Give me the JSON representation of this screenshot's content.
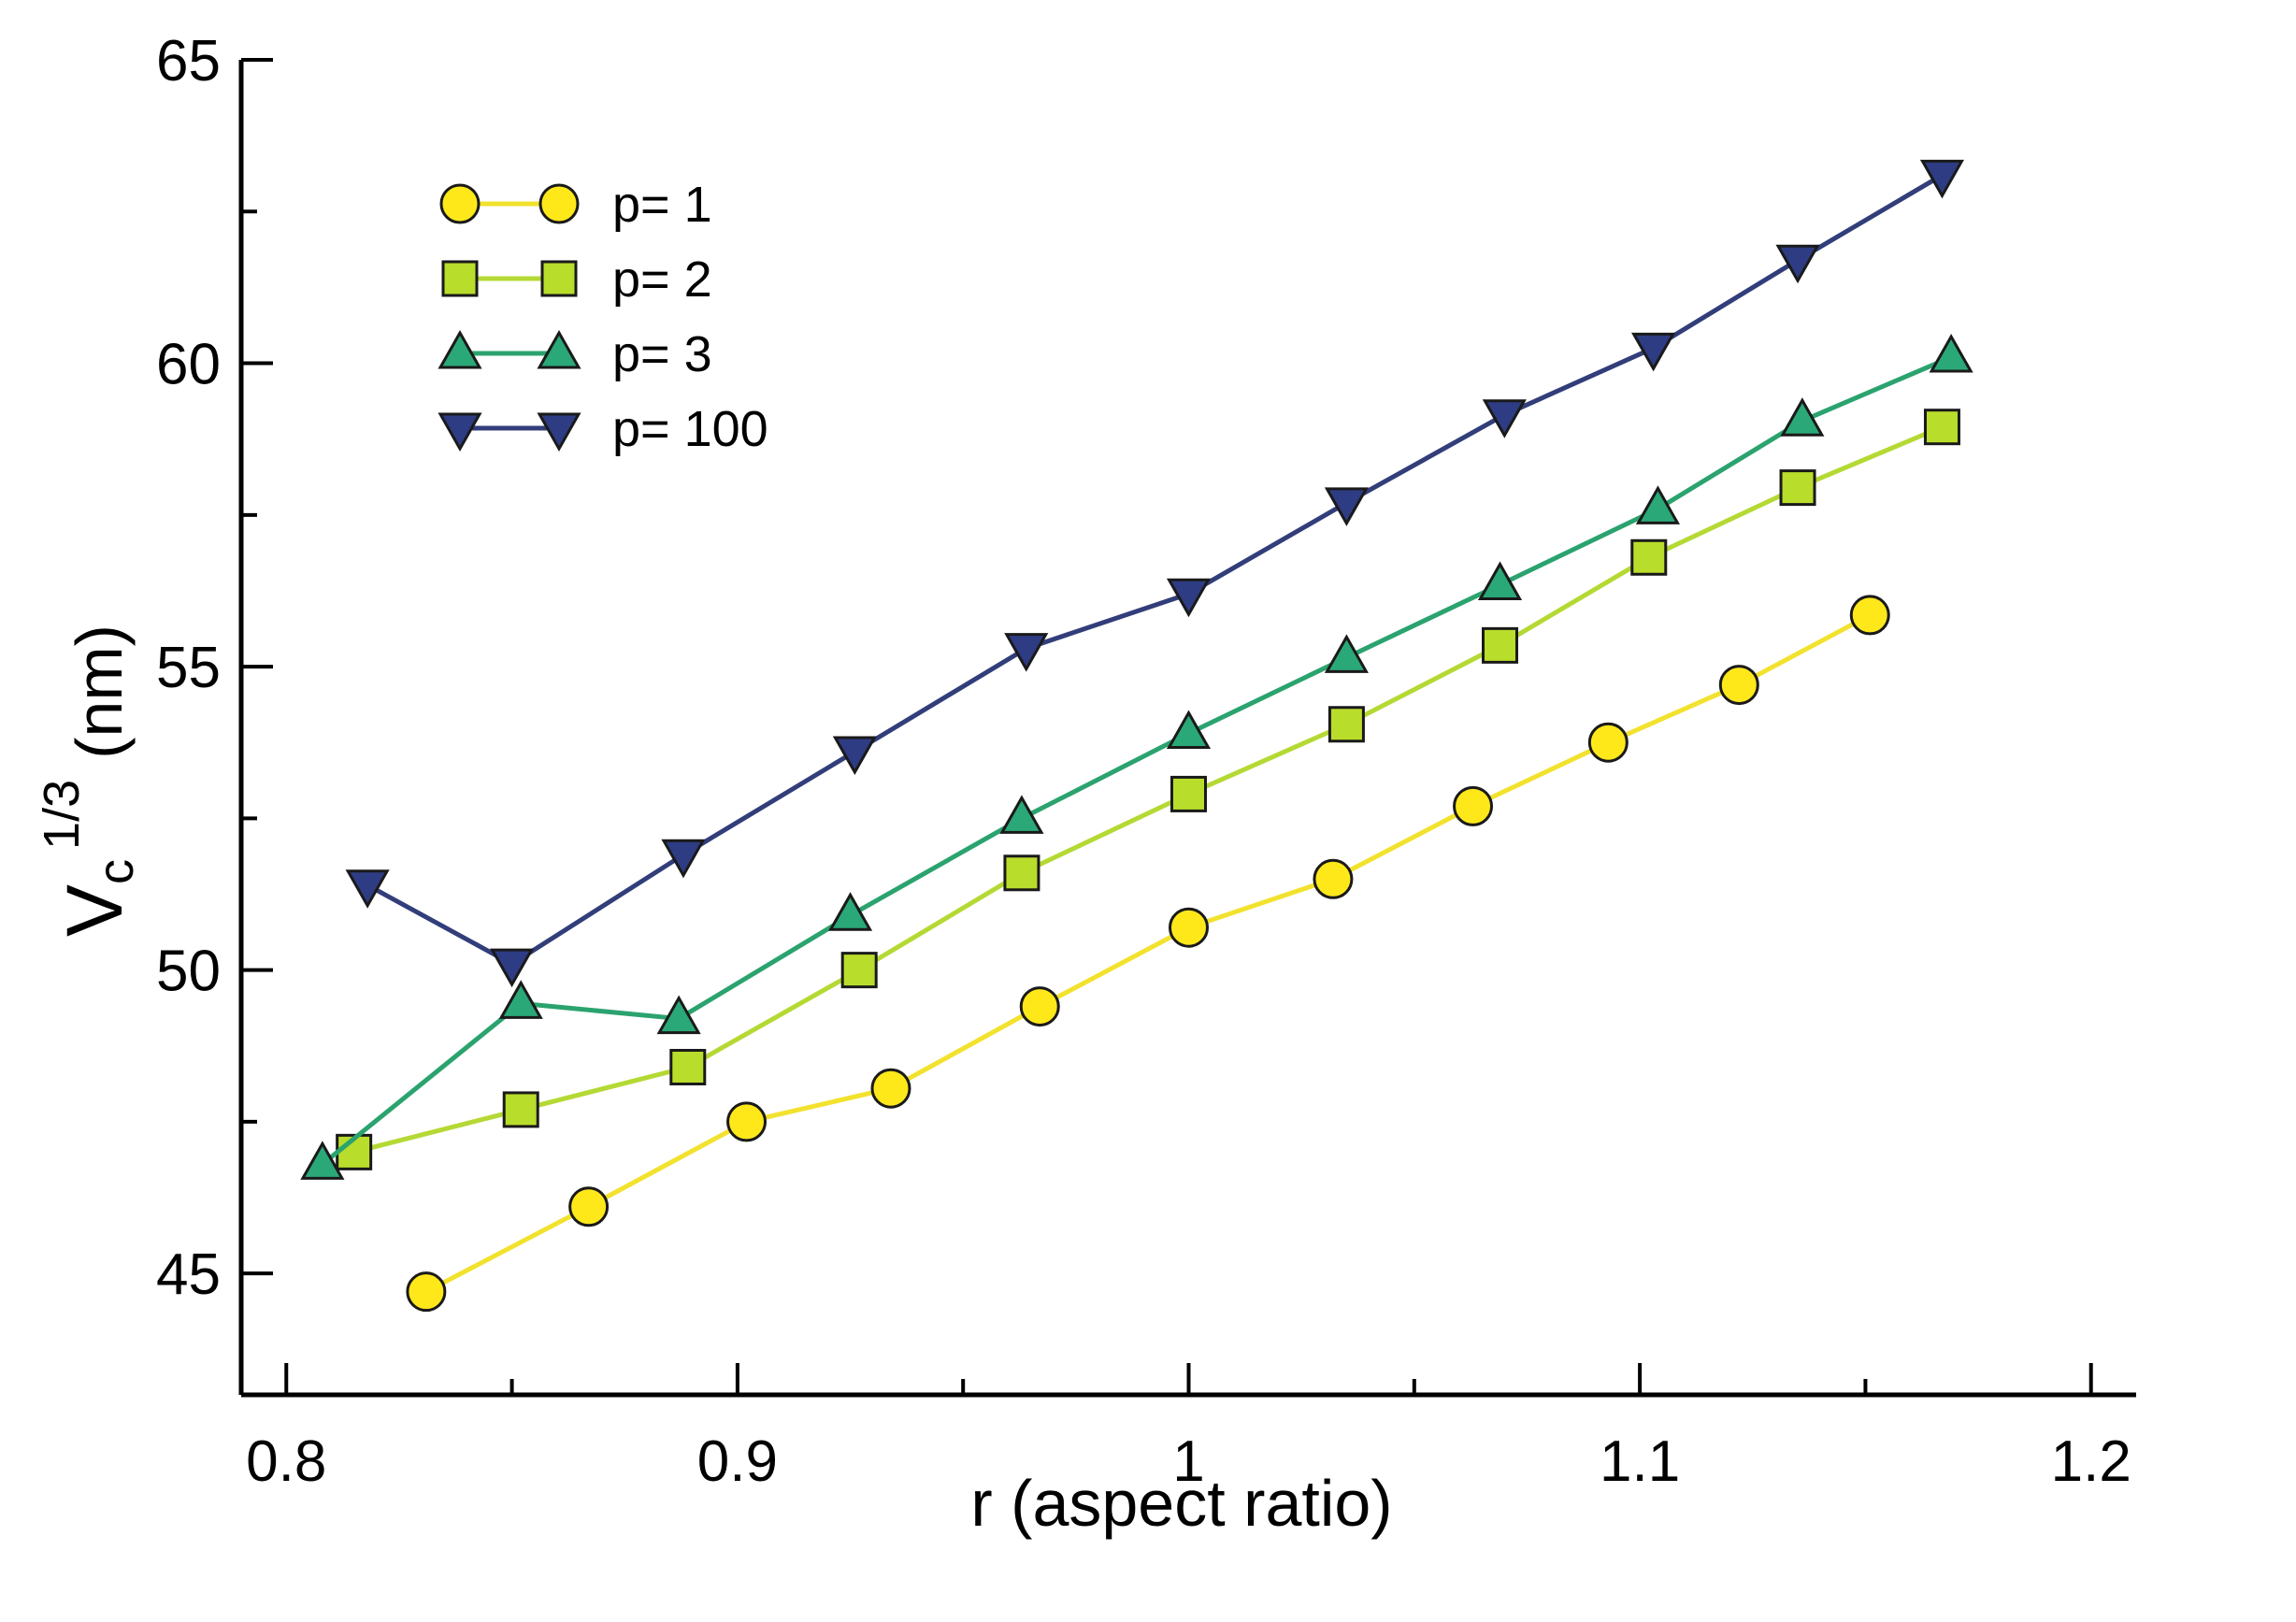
{
  "chart_data": {
    "type": "line",
    "title": "",
    "xlabel": "r (aspect ratio)",
    "ylabel_main": "V",
    "ylabel_sub": "c",
    "ylabel_sup": "1/3",
    "ylabel_unit": "(nm)",
    "xlim": [
      0.79,
      1.21
    ],
    "ylim": [
      43,
      65
    ],
    "x_ticks": [
      {
        "value": 0.8,
        "label": "0.8"
      },
      {
        "value": 0.9,
        "label": "0.9"
      },
      {
        "value": 1.0,
        "label": "1"
      },
      {
        "value": 1.1,
        "label": "1.1"
      },
      {
        "value": 1.2,
        "label": "1.2"
      }
    ],
    "x_minor_ticks": [
      0.85,
      0.95,
      1.05,
      1.15
    ],
    "y_ticks": [
      {
        "value": 45,
        "label": "45"
      },
      {
        "value": 50,
        "label": "50"
      },
      {
        "value": 55,
        "label": "55"
      },
      {
        "value": 60,
        "label": "60"
      },
      {
        "value": 65,
        "label": "65"
      }
    ],
    "y_minor_ticks": [
      47.5,
      52.5,
      57.5,
      62.5
    ],
    "grid": false,
    "legend_position": "top-left",
    "series": [
      {
        "name": "p= 1",
        "marker": "circle",
        "line_color": "#F2E22E",
        "fill_color": "#FFE81A",
        "x": [
          0.831,
          0.867,
          0.902,
          0.934,
          0.967,
          1.0,
          1.032,
          1.063,
          1.093,
          1.122,
          1.151
        ],
        "y": [
          44.7,
          46.1,
          47.5,
          48.05,
          49.4,
          50.7,
          51.5,
          52.7,
          53.75,
          54.7,
          55.85
        ]
      },
      {
        "name": "p= 2",
        "marker": "square",
        "line_color": "#B5D934",
        "fill_color": "#B9DD2B",
        "x": [
          0.815,
          0.852,
          0.889,
          0.927,
          0.963,
          1.0,
          1.035,
          1.069,
          1.102,
          1.135,
          1.167
        ],
        "y": [
          47.0,
          47.7,
          48.4,
          50.0,
          51.6,
          52.9,
          54.05,
          55.35,
          56.8,
          57.95,
          58.95
        ]
      },
      {
        "name": "p= 3",
        "marker": "triangle-up",
        "line_color": "#2BA36F",
        "fill_color": "#2BA878",
        "x": [
          0.808,
          0.852,
          0.887,
          0.925,
          0.963,
          1.0,
          1.035,
          1.069,
          1.104,
          1.136,
          1.169
        ],
        "y": [
          46.8,
          49.45,
          49.2,
          50.9,
          52.5,
          53.9,
          55.15,
          56.35,
          57.6,
          59.05,
          60.1
        ]
      },
      {
        "name": "p= 100",
        "marker": "triangle-down",
        "line_color": "#323E7A",
        "fill_color": "#2E3C84",
        "x": [
          0.818,
          0.85,
          0.888,
          0.926,
          0.964,
          1.0,
          1.035,
          1.07,
          1.103,
          1.135,
          1.167
        ],
        "y": [
          51.4,
          50.1,
          51.9,
          53.6,
          55.3,
          56.2,
          57.7,
          59.15,
          60.25,
          61.7,
          63.1
        ]
      }
    ]
  }
}
